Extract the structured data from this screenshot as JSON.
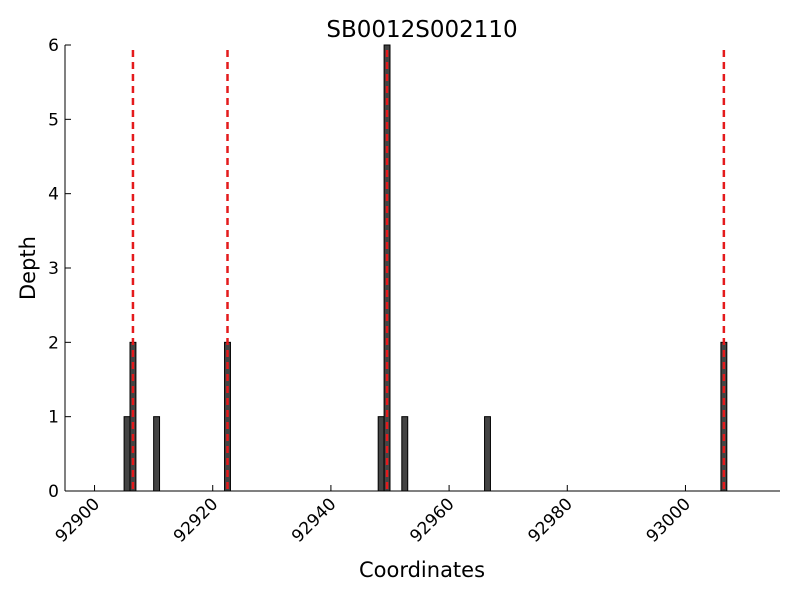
{
  "chart_data": {
    "type": "bar",
    "title": "SB0012S002110",
    "x_label": "Coordinates",
    "y_label": "Depth",
    "x": [
      92905,
      92906,
      92910,
      92922,
      92948,
      92949,
      92952,
      92966,
      93006
    ],
    "values": [
      1,
      2,
      1,
      2,
      1,
      6,
      1,
      1,
      2
    ],
    "color": "#444444",
    "vlines": [
      92906.5,
      92922.5,
      92949.5,
      93006.5
    ],
    "vline_color": "#e41a1c",
    "xlim": [
      92895,
      93016
    ],
    "ylim": [
      0,
      6
    ],
    "xticks": [
      92900,
      92920,
      92940,
      92960,
      92980,
      93000
    ],
    "yticks": [
      0,
      1,
      2,
      3,
      4,
      5,
      6
    ]
  }
}
